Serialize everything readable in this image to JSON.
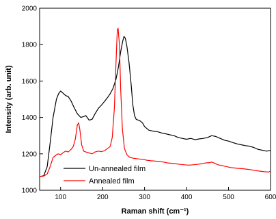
{
  "chart_data": {
    "type": "line",
    "xlabel": "Raman shift (cm⁻¹)",
    "ylabel": "Intensity (arb. unit)",
    "xlim": [
      50,
      600
    ],
    "ylim": [
      1000,
      2000
    ],
    "x_ticks": [
      100,
      200,
      300,
      400,
      500,
      600
    ],
    "x_tick_labels": [
      "100",
      "200",
      "300",
      "400",
      "500",
      "600"
    ],
    "y_ticks": [
      1000,
      1200,
      1400,
      1600,
      1800,
      2000
    ],
    "y_tick_labels": [
      "1000",
      "1200",
      "1400",
      "1600",
      "1800",
      "2000"
    ],
    "grid": false,
    "legend_position": "lower-left",
    "series": [
      {
        "name": "Un-annealed film",
        "color": "#000000",
        "points": [
          [
            50,
            1075
          ],
          [
            60,
            1080
          ],
          [
            68,
            1130
          ],
          [
            75,
            1260
          ],
          [
            82,
            1400
          ],
          [
            90,
            1500
          ],
          [
            95,
            1530
          ],
          [
            100,
            1545
          ],
          [
            105,
            1535
          ],
          [
            112,
            1520
          ],
          [
            118,
            1515
          ],
          [
            125,
            1490
          ],
          [
            132,
            1455
          ],
          [
            140,
            1420
          ],
          [
            148,
            1400
          ],
          [
            155,
            1405
          ],
          [
            160,
            1410
          ],
          [
            168,
            1385
          ],
          [
            175,
            1390
          ],
          [
            182,
            1420
          ],
          [
            190,
            1450
          ],
          [
            198,
            1470
          ],
          [
            205,
            1490
          ],
          [
            212,
            1510
          ],
          [
            218,
            1530
          ],
          [
            225,
            1560
          ],
          [
            232,
            1610
          ],
          [
            238,
            1680
          ],
          [
            243,
            1760
          ],
          [
            248,
            1820
          ],
          [
            251,
            1845
          ],
          [
            254,
            1835
          ],
          [
            258,
            1790
          ],
          [
            263,
            1700
          ],
          [
            268,
            1580
          ],
          [
            272,
            1470
          ],
          [
            276,
            1410
          ],
          [
            280,
            1390
          ],
          [
            285,
            1385
          ],
          [
            290,
            1380
          ],
          [
            295,
            1370
          ],
          [
            300,
            1350
          ],
          [
            310,
            1330
          ],
          [
            320,
            1325
          ],
          [
            330,
            1322
          ],
          [
            340,
            1315
          ],
          [
            350,
            1310
          ],
          [
            360,
            1305
          ],
          [
            370,
            1300
          ],
          [
            380,
            1290
          ],
          [
            390,
            1285
          ],
          [
            400,
            1280
          ],
          [
            410,
            1285
          ],
          [
            420,
            1278
          ],
          [
            430,
            1282
          ],
          [
            440,
            1285
          ],
          [
            450,
            1290
          ],
          [
            460,
            1300
          ],
          [
            470,
            1295
          ],
          [
            480,
            1285
          ],
          [
            490,
            1275
          ],
          [
            500,
            1270
          ],
          [
            510,
            1262
          ],
          [
            520,
            1255
          ],
          [
            530,
            1250
          ],
          [
            540,
            1245
          ],
          [
            550,
            1242
          ],
          [
            560,
            1235
          ],
          [
            570,
            1225
          ],
          [
            580,
            1220
          ],
          [
            590,
            1215
          ],
          [
            600,
            1218
          ]
        ]
      },
      {
        "name": "Annealed film",
        "color": "#ff0000",
        "points": [
          [
            50,
            1075
          ],
          [
            60,
            1078
          ],
          [
            68,
            1090
          ],
          [
            75,
            1130
          ],
          [
            82,
            1180
          ],
          [
            90,
            1195
          ],
          [
            95,
            1200
          ],
          [
            100,
            1195
          ],
          [
            105,
            1205
          ],
          [
            112,
            1215
          ],
          [
            118,
            1210
          ],
          [
            125,
            1225
          ],
          [
            130,
            1240
          ],
          [
            135,
            1280
          ],
          [
            140,
            1360
          ],
          [
            143,
            1370
          ],
          [
            146,
            1330
          ],
          [
            150,
            1250
          ],
          [
            155,
            1215
          ],
          [
            160,
            1210
          ],
          [
            168,
            1205
          ],
          [
            175,
            1200
          ],
          [
            182,
            1210
          ],
          [
            190,
            1215
          ],
          [
            198,
            1212
          ],
          [
            205,
            1218
          ],
          [
            212,
            1230
          ],
          [
            218,
            1240
          ],
          [
            223,
            1290
          ],
          [
            228,
            1450
          ],
          [
            232,
            1700
          ],
          [
            235,
            1880
          ],
          [
            237,
            1890
          ],
          [
            240,
            1800
          ],
          [
            243,
            1560
          ],
          [
            247,
            1340
          ],
          [
            252,
            1230
          ],
          [
            258,
            1195
          ],
          [
            265,
            1180
          ],
          [
            275,
            1175
          ],
          [
            285,
            1172
          ],
          [
            295,
            1170
          ],
          [
            305,
            1165
          ],
          [
            315,
            1162
          ],
          [
            325,
            1160
          ],
          [
            335,
            1158
          ],
          [
            345,
            1155
          ],
          [
            355,
            1150
          ],
          [
            365,
            1148
          ],
          [
            375,
            1145
          ],
          [
            385,
            1142
          ],
          [
            395,
            1140
          ],
          [
            405,
            1138
          ],
          [
            415,
            1140
          ],
          [
            425,
            1142
          ],
          [
            435,
            1145
          ],
          [
            445,
            1150
          ],
          [
            455,
            1152
          ],
          [
            460,
            1155
          ],
          [
            465,
            1150
          ],
          [
            475,
            1140
          ],
          [
            485,
            1135
          ],
          [
            495,
            1130
          ],
          [
            505,
            1125
          ],
          [
            515,
            1122
          ],
          [
            525,
            1120
          ],
          [
            535,
            1118
          ],
          [
            545,
            1115
          ],
          [
            555,
            1112
          ],
          [
            565,
            1108
          ],
          [
            575,
            1105
          ],
          [
            585,
            1102
          ],
          [
            595,
            1100
          ],
          [
            600,
            1105
          ]
        ]
      }
    ]
  }
}
